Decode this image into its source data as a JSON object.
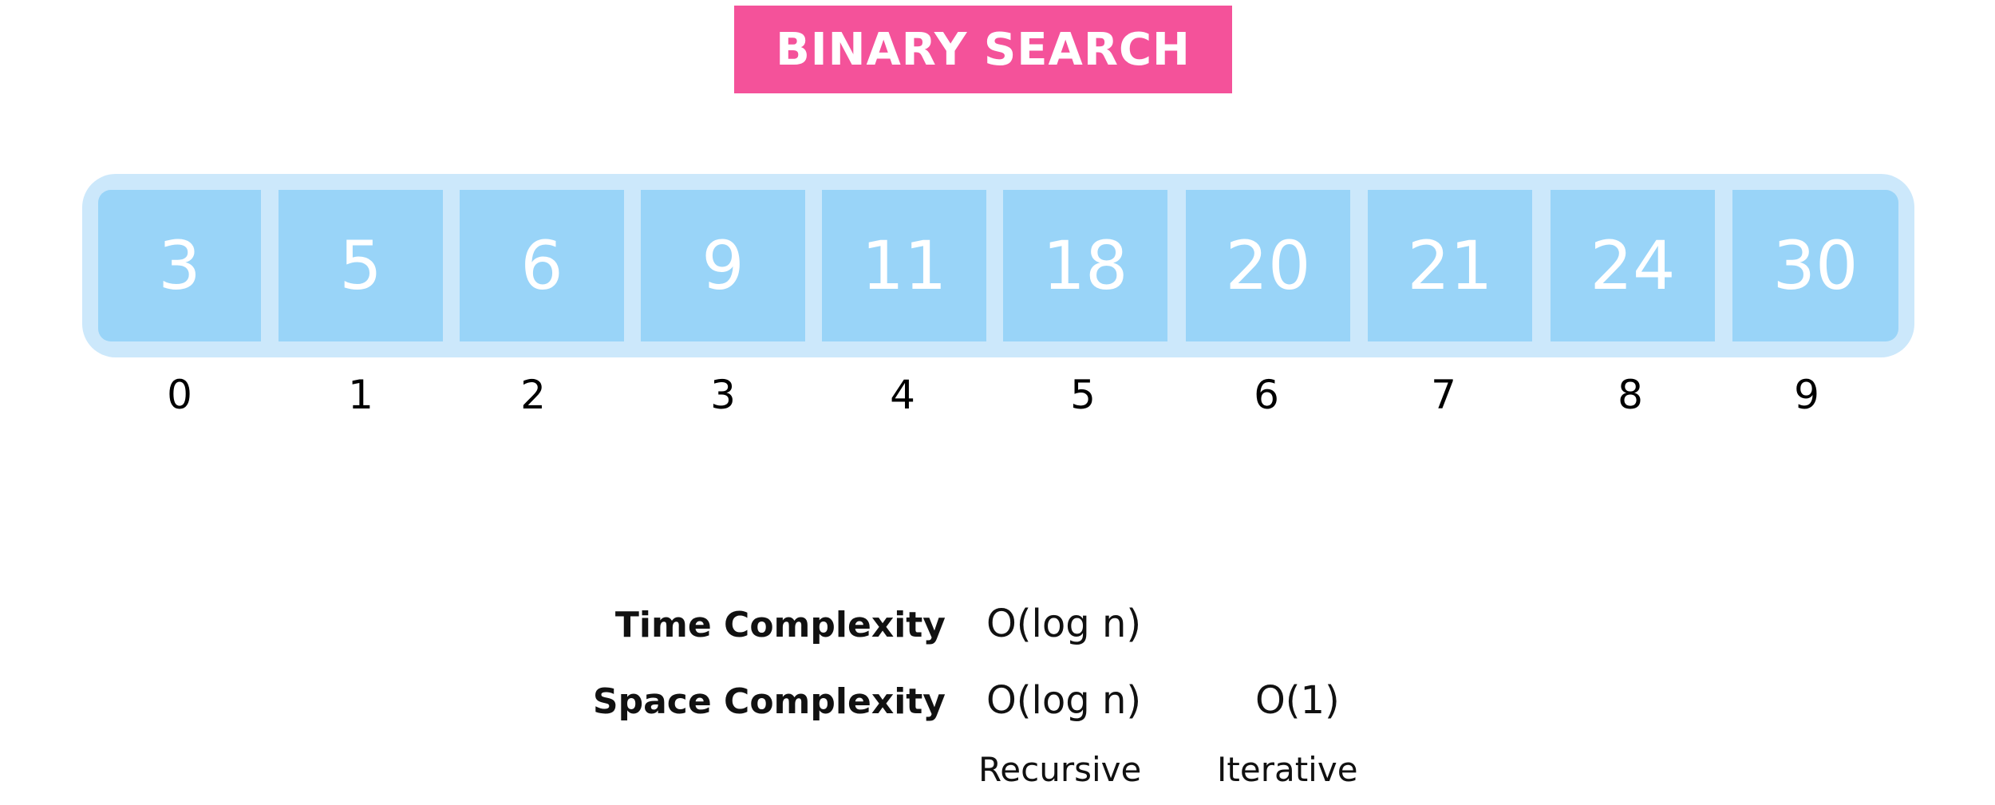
{
  "title": "BINARY SEARCH",
  "colors": {
    "title_bg": "#f4529a",
    "frame": "#cce8fb",
    "cell": "#99d4f8",
    "cell_text": "#ffffff"
  },
  "array": {
    "values": [
      "3",
      "5",
      "6",
      "9",
      "11",
      "18",
      "20",
      "21",
      "24",
      "30"
    ],
    "indices": [
      "0",
      "1",
      "2",
      "3",
      "4",
      "5",
      "6",
      "7",
      "8",
      "9"
    ]
  },
  "complexity": {
    "time_label": "Time Complexity",
    "time_value": "O(log n)",
    "space_label": "Space Complexity",
    "space_recursive": "O(log n)",
    "space_iterative": "O(1)",
    "recursive_label": "Recursive",
    "iterative_label": "Iterative"
  }
}
